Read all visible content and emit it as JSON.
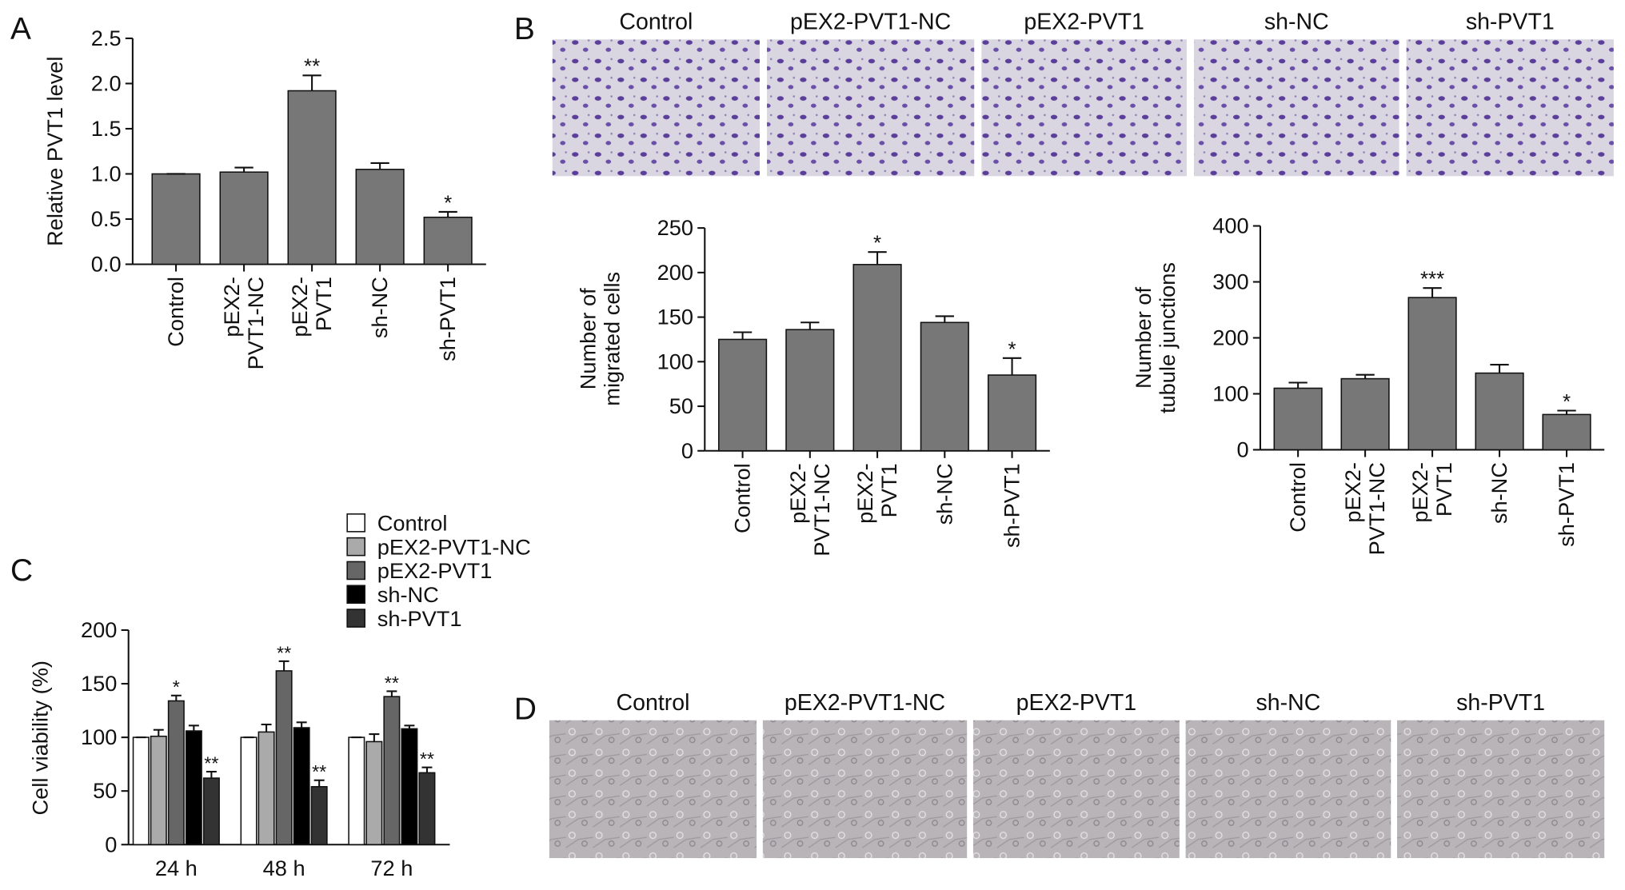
{
  "panel_labels": [
    "A",
    "B",
    "C",
    "D"
  ],
  "images_b": {
    "captions": [
      "Control",
      "pEX2-PVT1-NC",
      "pEX2-PVT1",
      "sh-NC",
      "sh-PVT1"
    ]
  },
  "images_d": {
    "captions": [
      "Control",
      "pEX2-PVT1-NC",
      "pEX2-PVT1",
      "sh-NC",
      "sh-PVT1"
    ]
  },
  "chart_data": [
    {
      "type": "bar",
      "y_label": "Relative PVT1 level",
      "categories": [
        "Control",
        "pEX2-\nPVT1-NC",
        "pEX2-\nPVT1",
        "sh-NC",
        "sh-PVT1"
      ],
      "values": [
        1.0,
        1.02,
        1.92,
        1.05,
        0.52
      ],
      "errors": [
        0,
        0.05,
        0.17,
        0.07,
        0.06
      ],
      "annotations": [
        null,
        null,
        "**",
        null,
        "*"
      ],
      "color": "#777777",
      "ylim": [
        0,
        2.5
      ],
      "yticks": [
        {
          "value": 0,
          "label": "0.0"
        },
        0.5,
        {
          "value": 1,
          "label": "1.0"
        },
        1.5,
        {
          "value": 2,
          "label": "2.0"
        },
        2.5
      ]
    },
    {
      "type": "bar",
      "y_label": "Number of\nmigrated cells",
      "categories": [
        "Control",
        "pEX2-\nPVT1-NC",
        "pEX2-\nPVT1",
        "sh-NC",
        "sh-PVT1"
      ],
      "values": [
        125,
        136,
        209,
        144,
        85
      ],
      "errors": [
        8,
        8,
        14,
        7,
        19
      ],
      "annotations": [
        null,
        null,
        "*",
        null,
        "*"
      ],
      "color": "#777777",
      "ylim": [
        0,
        250
      ],
      "yticks": [
        0,
        50,
        100,
        150,
        200,
        250
      ]
    },
    {
      "type": "bar",
      "y_label": "Number of\ntubule junctions",
      "categories": [
        "Control",
        "pEX2-\nPVT1-NC",
        "pEX2-\nPVT1",
        "sh-NC",
        "sh-PVT1"
      ],
      "values": [
        110,
        127,
        272,
        137,
        63
      ],
      "errors": [
        10,
        7,
        17,
        15,
        7
      ],
      "annotations": [
        null,
        null,
        "***",
        null,
        "*"
      ],
      "color": "#777777",
      "ylim": [
        0,
        400
      ],
      "yticks": [
        0,
        100,
        200,
        300,
        400
      ]
    },
    {
      "type": "grouped_bar",
      "y_label": "Cell viability (%)",
      "categories": [
        "24 h",
        "48 h",
        "72 h"
      ],
      "series": [
        {
          "name": "Control",
          "color": "#ffffff",
          "values": [
            100,
            100,
            100
          ],
          "errors": [
            0,
            0,
            0
          ]
        },
        {
          "name": "pEX2-PVT1-NC",
          "color": "#aaaaaa",
          "values": [
            101,
            105,
            96
          ],
          "errors": [
            6,
            7,
            7
          ]
        },
        {
          "name": "pEX2-PVT1",
          "color": "#666666",
          "values": [
            134,
            162,
            138
          ],
          "errors": [
            5,
            9,
            5
          ],
          "annotations": [
            "*",
            "**",
            "**"
          ]
        },
        {
          "name": "sh-NC",
          "color": "#000000",
          "values": [
            106,
            109,
            108
          ],
          "errors": [
            5,
            5,
            3
          ]
        },
        {
          "name": "sh-PVT1",
          "color": "#333333",
          "values": [
            62,
            54,
            67
          ],
          "errors": [
            6,
            6,
            5
          ],
          "annotations": [
            "**",
            "**",
            "**"
          ]
        }
      ],
      "ylim": [
        0,
        200
      ],
      "yticks": [
        0,
        50,
        100,
        150,
        200
      ]
    }
  ]
}
